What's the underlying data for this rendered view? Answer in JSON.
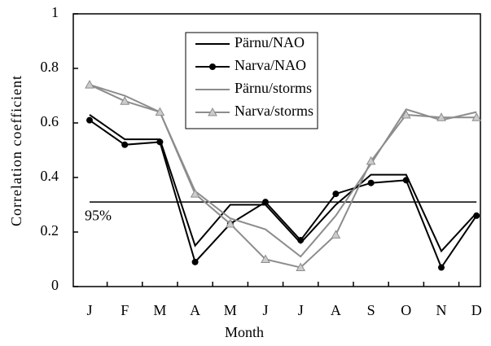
{
  "chart_data": {
    "type": "line",
    "categories": [
      "J",
      "F",
      "M",
      "A",
      "M",
      "J",
      "J",
      "A",
      "S",
      "O",
      "N",
      "D"
    ],
    "series": [
      {
        "name": "Pärnu/NAO",
        "color": "#000000",
        "marker": "none",
        "values": [
          0.63,
          0.54,
          0.54,
          0.15,
          0.3,
          0.3,
          0.16,
          0.3,
          0.41,
          0.41,
          0.13,
          0.27
        ]
      },
      {
        "name": "Narva/NAO",
        "color": "#000000",
        "marker": "circle",
        "values": [
          0.61,
          0.52,
          0.53,
          0.09,
          0.23,
          0.31,
          0.17,
          0.34,
          0.38,
          0.39,
          0.07,
          0.26
        ]
      },
      {
        "name": "Pärnu/storms",
        "color": "#8c8c8c",
        "marker": "none",
        "values": [
          0.74,
          0.7,
          0.64,
          0.35,
          0.25,
          0.21,
          0.11,
          0.26,
          0.45,
          0.65,
          0.61,
          0.64
        ]
      },
      {
        "name": "Narva/storms",
        "color": "#8c8c8c",
        "marker": "triangle",
        "values": [
          0.74,
          0.68,
          0.64,
          0.34,
          0.23,
          0.1,
          0.07,
          0.19,
          0.46,
          0.63,
          0.62,
          0.62
        ]
      }
    ],
    "threshold": {
      "value": 0.31,
      "label": "95%"
    },
    "xlabel": "Month",
    "ylabel": "Correlation coefficient",
    "ylim": [
      0,
      1
    ],
    "yticks": [
      0,
      0.2,
      0.4,
      0.6,
      0.8,
      1
    ]
  }
}
